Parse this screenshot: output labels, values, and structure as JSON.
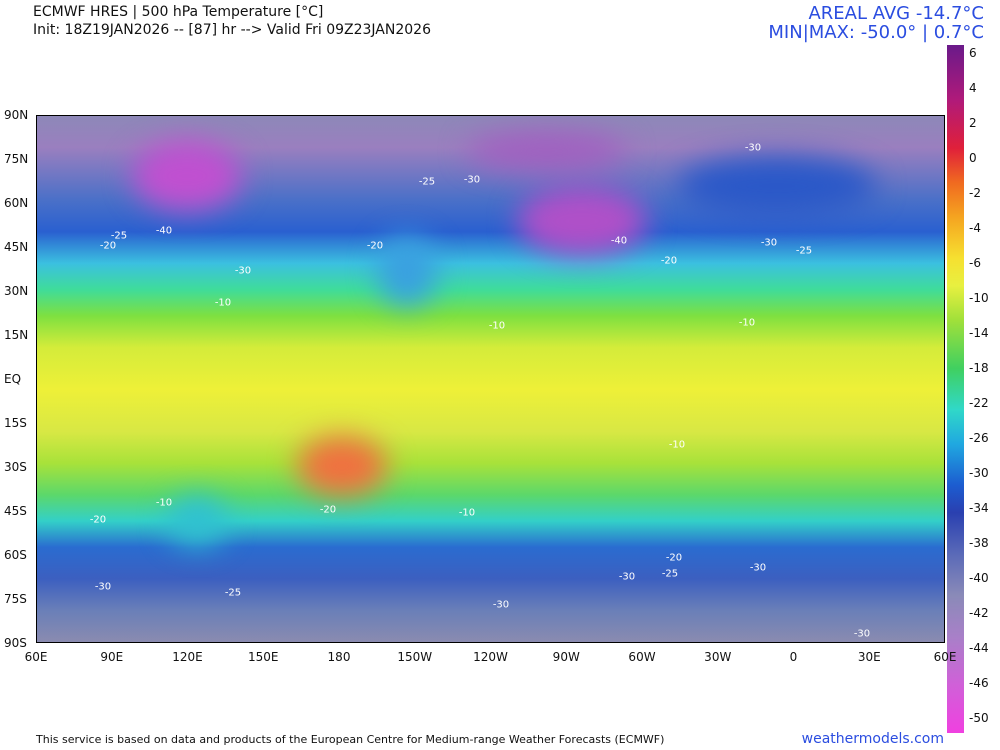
{
  "header": {
    "title": "ECMWF HRES | 500 hPa Temperature [°C]",
    "init": "Init: 18Z19JAN2026 -- [87] hr --> Valid Fri 09Z23JAN2026",
    "areal_avg": "AREAL AVG -14.7°C",
    "min_max": "MIN|MAX: -50.0° | 0.7°C"
  },
  "map": {
    "lat_labels": [
      "90N",
      "75N",
      "60N",
      "45N",
      "30N",
      "15N",
      "EQ",
      "15S",
      "30S",
      "45S",
      "60S",
      "75S",
      "90S"
    ],
    "lon_labels": [
      "60E",
      "90E",
      "120E",
      "150E",
      "180",
      "150W",
      "120W",
      "90W",
      "60W",
      "30W",
      "0",
      "30E",
      "60E"
    ],
    "contour_labels": [
      "-40",
      "-25",
      "-20",
      "-30",
      "-25",
      "-30",
      "-20",
      "-40",
      "-30",
      "-30",
      "-25",
      "-20",
      "-10",
      "-10",
      "-10",
      "-10",
      "-10",
      "-20",
      "-20",
      "-10",
      "-20",
      "-25",
      "-30",
      "-30",
      "-30",
      "-25",
      "-30",
      "-30"
    ]
  },
  "colorbar": {
    "labels": [
      "6",
      "4",
      "2",
      "0",
      "-2",
      "-4",
      "-6",
      "-10",
      "-14",
      "-18",
      "-22",
      "-26",
      "-30",
      "-34",
      "-38",
      "-40",
      "-42",
      "-44",
      "-46",
      "-50"
    ]
  },
  "footer": {
    "credit": "This service is based on data and products of the European Centre for Medium-range Weather Forecasts (ECMWF)",
    "site": "weathermodels.com"
  }
}
